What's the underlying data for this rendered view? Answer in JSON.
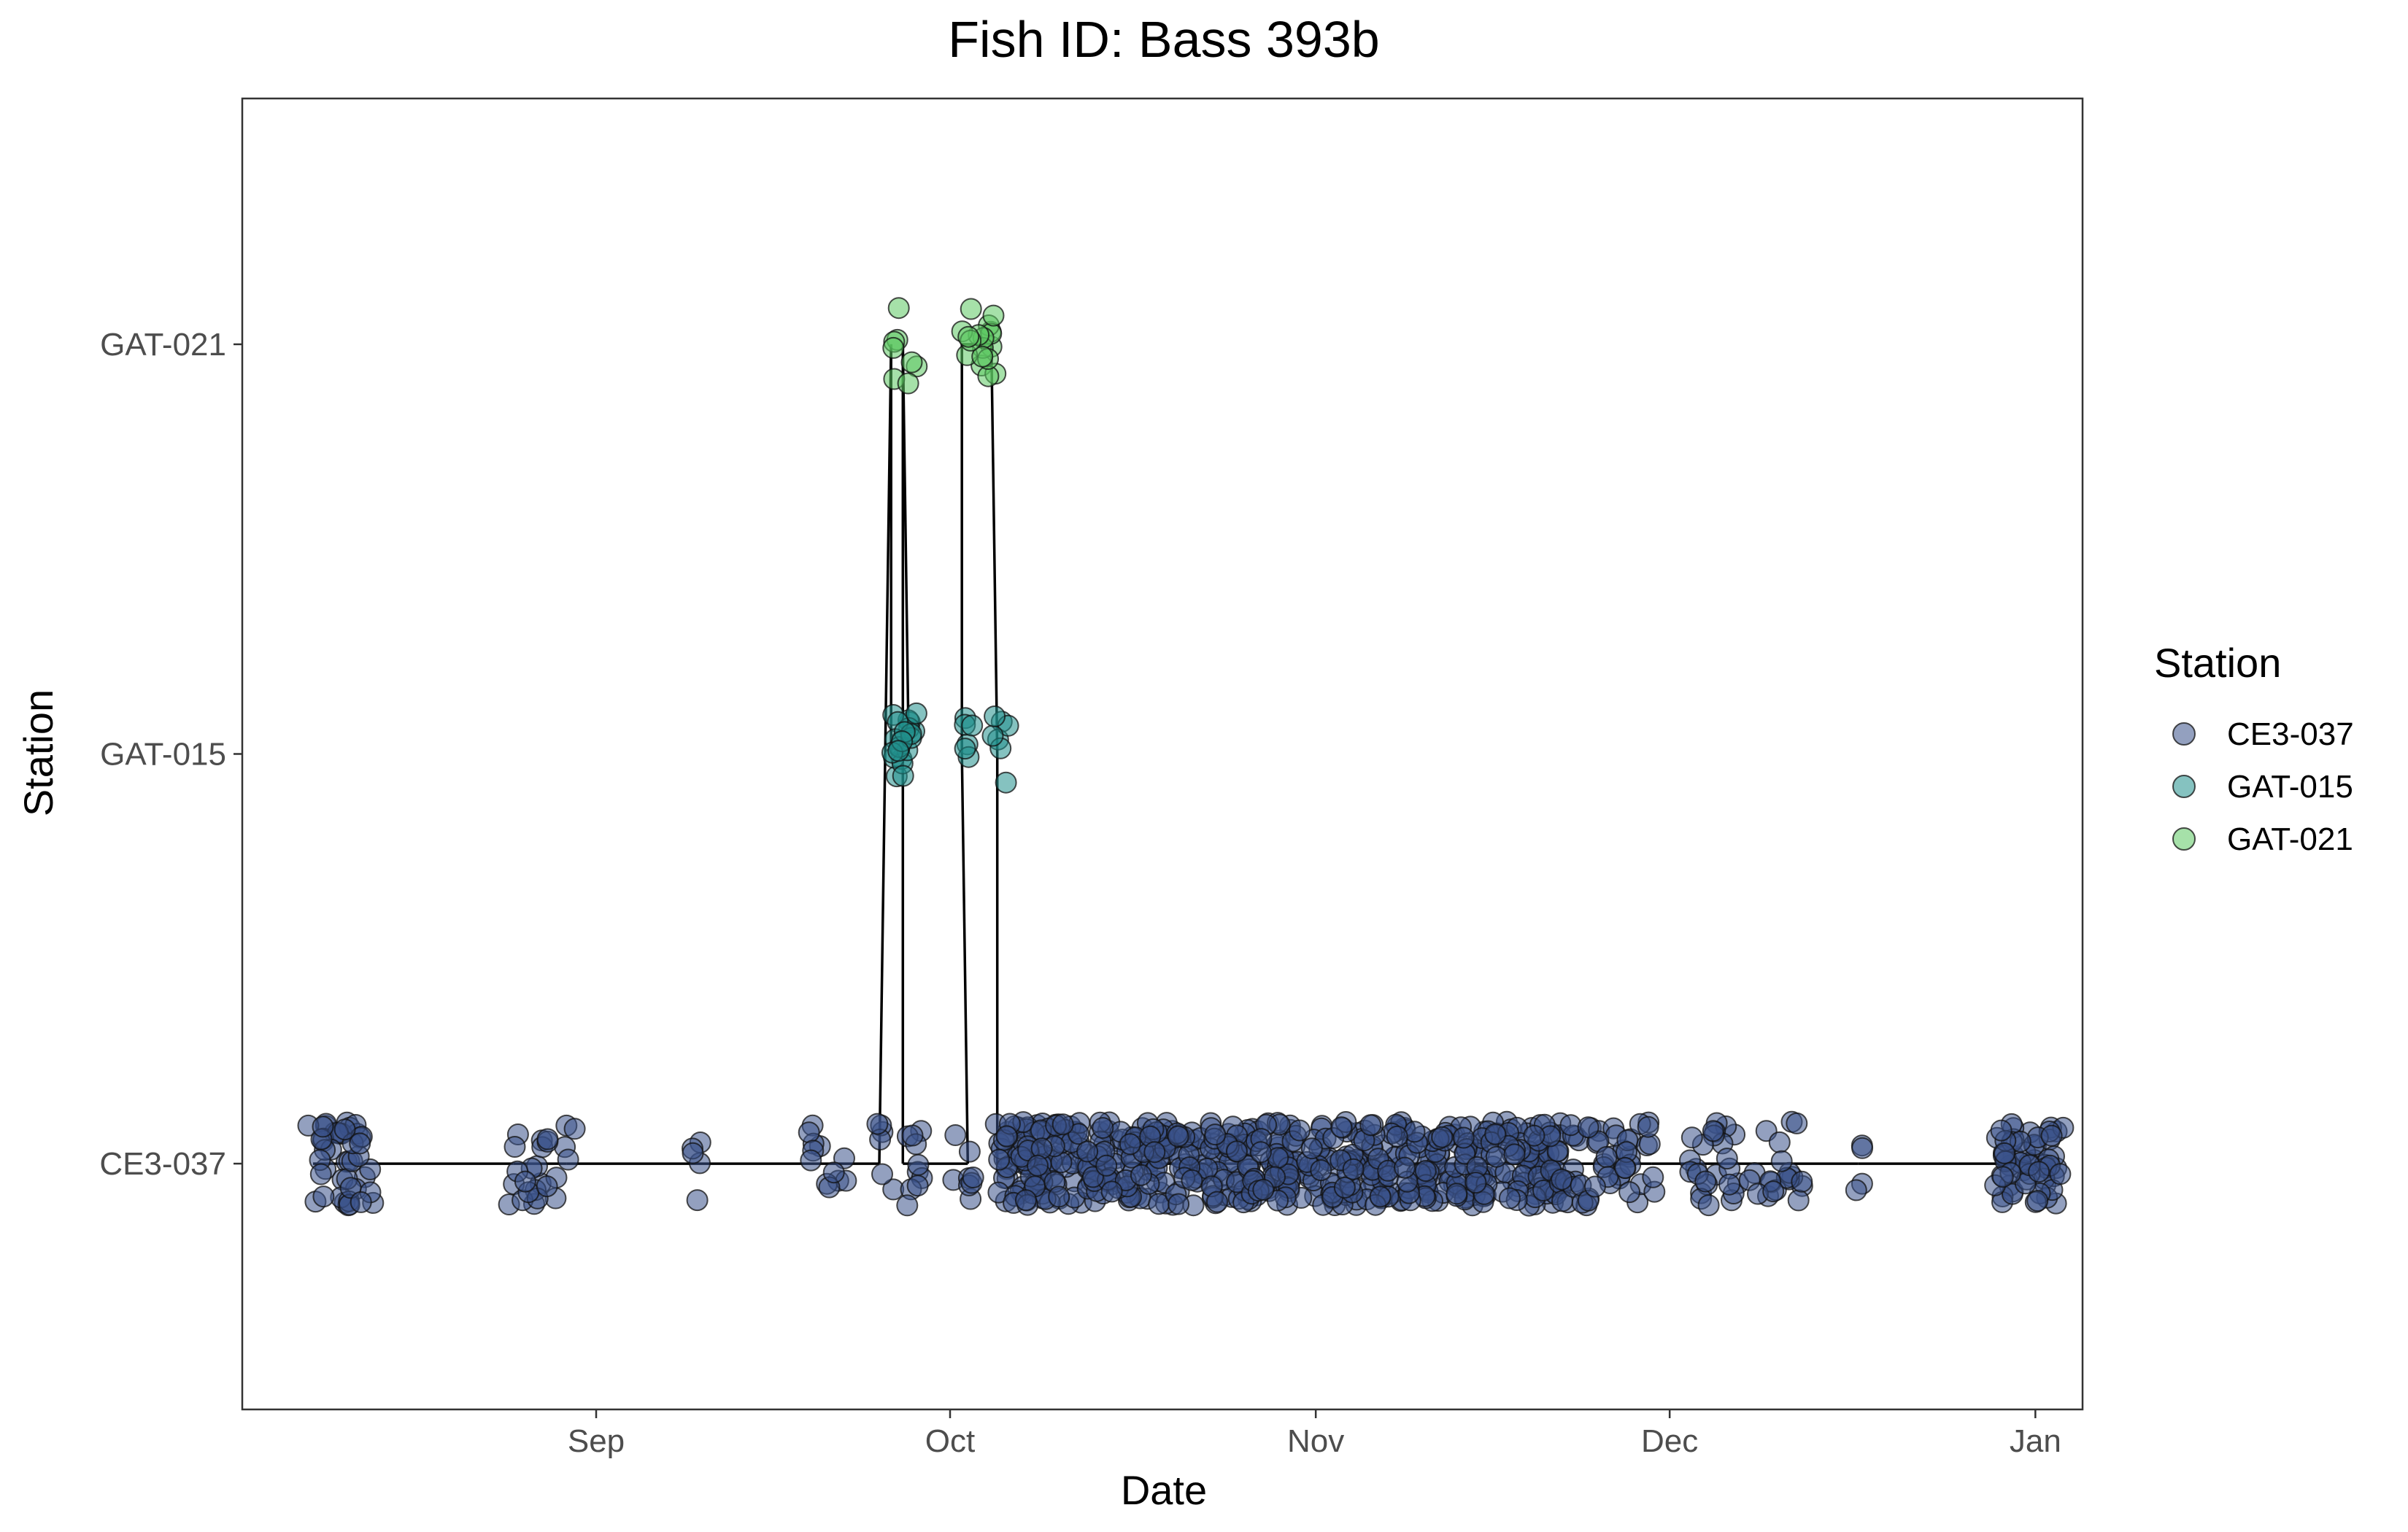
{
  "chart_data": {
    "type": "scatter",
    "title": "Fish ID: Bass 393b",
    "xlabel": "Date",
    "ylabel": "Station",
    "x_axis": {
      "type": "date",
      "ticks": [
        {
          "date": "2023-09-01",
          "label": "Sep"
        },
        {
          "date": "2023-10-01",
          "label": "Oct"
        },
        {
          "date": "2023-11-01",
          "label": "Nov"
        },
        {
          "date": "2023-12-01",
          "label": "Dec"
        },
        {
          "date": "2024-01-01",
          "label": "Jan"
        }
      ],
      "range": [
        "2023-08-02",
        "2024-01-05"
      ]
    },
    "y_axis": {
      "type": "categorical",
      "categories": [
        "CE3-037",
        "GAT-015",
        "GAT-021"
      ]
    },
    "grid": false,
    "legend": {
      "title": "Station",
      "position": "right",
      "items": [
        {
          "label": "CE3-037",
          "color": "#3B528B"
        },
        {
          "label": "GAT-015",
          "color": "#21908C"
        },
        {
          "label": "GAT-021",
          "color": "#5DC863"
        }
      ]
    },
    "point_opacity": 0.55,
    "jitter": true,
    "line_color": "#000000",
    "detection_clusters": [
      {
        "station": "CE3-037",
        "start": "2023-08-08",
        "end": "2023-08-12",
        "count": 45
      },
      {
        "station": "CE3-037",
        "start": "2023-08-25",
        "end": "2023-08-29",
        "count": 25
      },
      {
        "station": "CE3-037",
        "start": "2023-09-09",
        "end": "2023-09-09",
        "count": 5
      },
      {
        "station": "CE3-037",
        "start": "2023-09-19",
        "end": "2023-09-21",
        "count": 12
      },
      {
        "station": "CE3-037",
        "start": "2023-09-25",
        "end": "2023-09-25",
        "count": 6
      },
      {
        "station": "GAT-021",
        "start": "2023-09-26",
        "end": "2023-09-26",
        "count": 5
      },
      {
        "station": "GAT-015",
        "start": "2023-09-26",
        "end": "2023-09-27",
        "count": 22
      },
      {
        "station": "GAT-021",
        "start": "2023-09-27",
        "end": "2023-09-27",
        "count": 3
      },
      {
        "station": "CE3-037",
        "start": "2023-09-27",
        "end": "2023-09-28",
        "count": 10
      },
      {
        "station": "CE3-037",
        "start": "2023-10-01",
        "end": "2023-10-02",
        "count": 8
      },
      {
        "station": "GAT-015",
        "start": "2023-10-02",
        "end": "2023-10-02",
        "count": 6
      },
      {
        "station": "GAT-021",
        "start": "2023-10-02",
        "end": "2023-10-04",
        "count": 18
      },
      {
        "station": "GAT-015",
        "start": "2023-10-05",
        "end": "2023-10-05",
        "count": 7
      },
      {
        "station": "CE3-037",
        "start": "2023-10-05",
        "end": "2023-11-21",
        "count": 620
      },
      {
        "station": "CE3-037",
        "start": "2023-11-22",
        "end": "2023-11-29",
        "count": 50
      },
      {
        "station": "CE3-037",
        "start": "2023-12-03",
        "end": "2023-12-06",
        "count": 25
      },
      {
        "station": "CE3-037",
        "start": "2023-12-08",
        "end": "2023-12-11",
        "count": 20
      },
      {
        "station": "CE3-037",
        "start": "2023-12-17",
        "end": "2023-12-17",
        "count": 4
      },
      {
        "station": "CE3-037",
        "start": "2023-12-29",
        "end": "2024-01-02",
        "count": 60
      }
    ]
  }
}
